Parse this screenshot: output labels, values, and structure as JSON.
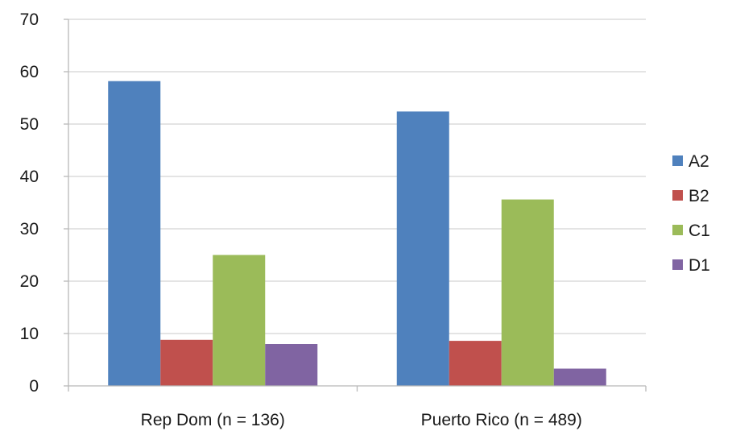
{
  "chart_data": {
    "type": "bar",
    "categories": [
      "Rep Dom (n = 136)",
      "Puerto Rico (n = 489)"
    ],
    "series": [
      {
        "name": "A2",
        "color": "#4F81BD",
        "values": [
          58.2,
          52.4
        ]
      },
      {
        "name": "B2",
        "color": "#C0504D",
        "values": [
          8.8,
          8.6
        ]
      },
      {
        "name": "C1",
        "color": "#9BBB59",
        "values": [
          25.0,
          35.6
        ]
      },
      {
        "name": "D1",
        "color": "#8064A2",
        "values": [
          8.0,
          3.3
        ]
      }
    ],
    "ylim": [
      0,
      70
    ],
    "yticks": [
      0,
      10,
      20,
      30,
      40,
      50,
      60,
      70
    ],
    "grid": true,
    "legend_position": "right"
  }
}
